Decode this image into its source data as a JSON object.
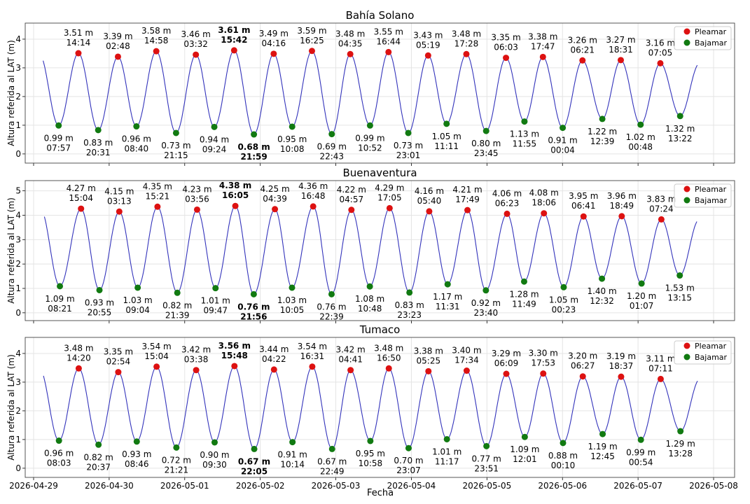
{
  "figure": {
    "xlabel": "Fecha",
    "x_ticks": [
      "2026-04-29",
      "2026-04-30",
      "2026-05-01",
      "2026-05-02",
      "2026-05-03",
      "2026-05-04",
      "2026-05-05",
      "2026-05-06",
      "2026-05-07",
      "2026-05-08"
    ]
  },
  "colors": {
    "line": "#3333bb",
    "high": "#dd1111",
    "low": "#117a11",
    "grid": "#e4e4e4"
  },
  "chart_data": [
    {
      "type": "line",
      "title": "Bahía Solano",
      "ylabel": "Altura referida al LAT (m)",
      "xlim": [
        "2026-04-28T21:20",
        "2026-05-08T06:40"
      ],
      "ylim": [
        -0.32,
        4.56
      ],
      "yticks": [
        0,
        1,
        2,
        3,
        4
      ],
      "grid": true,
      "legend": {
        "position": "top-right",
        "entries": [
          "Pleamar",
          "Bajamar"
        ]
      },
      "series": [
        {
          "name": "Pleamar",
          "points": [
            {
              "x": "2026-04-29T14:14",
              "y": 3.51,
              "label": "3.51 m",
              "time": "14:14"
            },
            {
              "x": "2026-04-30T02:48",
              "y": 3.39,
              "label": "3.39 m",
              "time": "02:48"
            },
            {
              "x": "2026-04-30T14:58",
              "y": 3.58,
              "label": "3.58 m",
              "time": "14:58"
            },
            {
              "x": "2026-05-01T03:32",
              "y": 3.46,
              "label": "3.46 m",
              "time": "03:32"
            },
            {
              "x": "2026-05-01T15:42",
              "y": 3.61,
              "label": "3.61 m",
              "time": "15:42",
              "bold": true
            },
            {
              "x": "2026-05-02T04:16",
              "y": 3.49,
              "label": "3.49 m",
              "time": "04:16"
            },
            {
              "x": "2026-05-02T16:25",
              "y": 3.59,
              "label": "3.59 m",
              "time": "16:25"
            },
            {
              "x": "2026-05-03T04:35",
              "y": 3.48,
              "label": "3.48 m",
              "time": "04:35"
            },
            {
              "x": "2026-05-03T16:44",
              "y": 3.55,
              "label": "3.55 m",
              "time": "16:44"
            },
            {
              "x": "2026-05-04T05:19",
              "y": 3.43,
              "label": "3.43 m",
              "time": "05:19"
            },
            {
              "x": "2026-05-04T17:28",
              "y": 3.48,
              "label": "3.48 m",
              "time": "17:28"
            },
            {
              "x": "2026-05-05T06:03",
              "y": 3.35,
              "label": "3.35 m",
              "time": "06:03"
            },
            {
              "x": "2026-05-05T17:47",
              "y": 3.38,
              "label": "3.38 m",
              "time": "17:47"
            },
            {
              "x": "2026-05-06T06:21",
              "y": 3.26,
              "label": "3.26 m",
              "time": "06:21"
            },
            {
              "x": "2026-05-06T18:31",
              "y": 3.27,
              "label": "3.27 m",
              "time": "18:31"
            },
            {
              "x": "2026-05-07T07:05",
              "y": 3.16,
              "label": "3.16 m",
              "time": "07:05"
            }
          ]
        },
        {
          "name": "Bajamar",
          "points": [
            {
              "x": "2026-04-29T07:57",
              "y": 0.99,
              "label": "0.99 m",
              "time": "07:57"
            },
            {
              "x": "2026-04-29T20:31",
              "y": 0.83,
              "label": "0.83 m",
              "time": "20:31"
            },
            {
              "x": "2026-04-30T08:40",
              "y": 0.96,
              "label": "0.96 m",
              "time": "08:40"
            },
            {
              "x": "2026-04-30T21:15",
              "y": 0.73,
              "label": "0.73 m",
              "time": "21:15"
            },
            {
              "x": "2026-05-01T09:24",
              "y": 0.94,
              "label": "0.94 m",
              "time": "09:24"
            },
            {
              "x": "2026-05-01T21:59",
              "y": 0.68,
              "label": "0.68 m",
              "time": "21:59",
              "bold": true
            },
            {
              "x": "2026-05-02T10:08",
              "y": 0.95,
              "label": "0.95 m",
              "time": "10:08"
            },
            {
              "x": "2026-05-02T22:43",
              "y": 0.69,
              "label": "0.69 m",
              "time": "22:43"
            },
            {
              "x": "2026-05-03T10:52",
              "y": 0.99,
              "label": "0.99 m",
              "time": "10:52"
            },
            {
              "x": "2026-05-03T23:01",
              "y": 0.73,
              "label": "0.73 m",
              "time": "23:01"
            },
            {
              "x": "2026-05-04T11:11",
              "y": 1.05,
              "label": "1.05 m",
              "time": "11:11"
            },
            {
              "x": "2026-05-04T23:45",
              "y": 0.8,
              "label": "0.80 m",
              "time": "23:45"
            },
            {
              "x": "2026-05-05T11:55",
              "y": 1.13,
              "label": "1.13 m",
              "time": "11:55"
            },
            {
              "x": "2026-05-06T00:04",
              "y": 0.91,
              "label": "0.91 m",
              "time": "00:04"
            },
            {
              "x": "2026-05-06T12:39",
              "y": 1.22,
              "label": "1.22 m",
              "time": "12:39"
            },
            {
              "x": "2026-05-07T00:48",
              "y": 1.02,
              "label": "1.02 m",
              "time": "00:48"
            },
            {
              "x": "2026-05-07T13:22",
              "y": 1.32,
              "label": "1.32 m",
              "time": "13:22"
            }
          ]
        }
      ]
    },
    {
      "type": "line",
      "title": "Buenaventura",
      "ylabel": "Altura referida al LAT (m)",
      "xlim": [
        "2026-04-28T21:20",
        "2026-05-08T06:40"
      ],
      "ylim": [
        -0.32,
        5.42
      ],
      "yticks": [
        0,
        1,
        2,
        3,
        4,
        5
      ],
      "grid": true,
      "legend": {
        "position": "top-right",
        "entries": [
          "Pleamar",
          "Bajamar"
        ]
      },
      "series": [
        {
          "name": "Pleamar",
          "points": [
            {
              "x": "2026-04-29T15:04",
              "y": 4.27,
              "label": "4.27 m",
              "time": "15:04"
            },
            {
              "x": "2026-04-30T03:13",
              "y": 4.15,
              "label": "4.15 m",
              "time": "03:13"
            },
            {
              "x": "2026-04-30T15:21",
              "y": 4.35,
              "label": "4.35 m",
              "time": "15:21"
            },
            {
              "x": "2026-05-01T03:56",
              "y": 4.23,
              "label": "4.23 m",
              "time": "03:56"
            },
            {
              "x": "2026-05-01T16:05",
              "y": 4.38,
              "label": "4.38 m",
              "time": "16:05",
              "bold": true
            },
            {
              "x": "2026-05-02T04:39",
              "y": 4.25,
              "label": "4.25 m",
              "time": "04:39"
            },
            {
              "x": "2026-05-02T16:48",
              "y": 4.36,
              "label": "4.36 m",
              "time": "16:48"
            },
            {
              "x": "2026-05-03T04:57",
              "y": 4.22,
              "label": "4.22 m",
              "time": "04:57"
            },
            {
              "x": "2026-05-03T17:05",
              "y": 4.29,
              "label": "4.29 m",
              "time": "17:05"
            },
            {
              "x": "2026-05-04T05:40",
              "y": 4.16,
              "label": "4.16 m",
              "time": "05:40"
            },
            {
              "x": "2026-05-04T17:49",
              "y": 4.21,
              "label": "4.21 m",
              "time": "17:49"
            },
            {
              "x": "2026-05-05T06:23",
              "y": 4.06,
              "label": "4.06 m",
              "time": "06:23"
            },
            {
              "x": "2026-05-05T18:06",
              "y": 4.08,
              "label": "4.08 m",
              "time": "18:06"
            },
            {
              "x": "2026-05-06T06:41",
              "y": 3.95,
              "label": "3.95 m",
              "time": "06:41"
            },
            {
              "x": "2026-05-06T18:49",
              "y": 3.96,
              "label": "3.96 m",
              "time": "18:49"
            },
            {
              "x": "2026-05-07T07:24",
              "y": 3.83,
              "label": "3.83 m",
              "time": "07:24"
            }
          ]
        },
        {
          "name": "Bajamar",
          "points": [
            {
              "x": "2026-04-29T08:21",
              "y": 1.09,
              "label": "1.09 m",
              "time": "08:21"
            },
            {
              "x": "2026-04-29T20:55",
              "y": 0.93,
              "label": "0.93 m",
              "time": "20:55"
            },
            {
              "x": "2026-04-30T09:04",
              "y": 1.03,
              "label": "1.03 m",
              "time": "09:04"
            },
            {
              "x": "2026-04-30T21:39",
              "y": 0.82,
              "label": "0.82 m",
              "time": "21:39"
            },
            {
              "x": "2026-05-01T09:47",
              "y": 1.01,
              "label": "1.01 m",
              "time": "09:47"
            },
            {
              "x": "2026-05-01T21:56",
              "y": 0.76,
              "label": "0.76 m",
              "time": "21:56",
              "bold": true
            },
            {
              "x": "2026-05-02T10:05",
              "y": 1.03,
              "label": "1.03 m",
              "time": "10:05"
            },
            {
              "x": "2026-05-02T22:39",
              "y": 0.76,
              "label": "0.76 m",
              "time": "22:39"
            },
            {
              "x": "2026-05-03T10:48",
              "y": 1.08,
              "label": "1.08 m",
              "time": "10:48"
            },
            {
              "x": "2026-05-03T23:23",
              "y": 0.83,
              "label": "0.83 m",
              "time": "23:23"
            },
            {
              "x": "2026-05-04T11:31",
              "y": 1.17,
              "label": "1.17 m",
              "time": "11:31"
            },
            {
              "x": "2026-05-04T23:40",
              "y": 0.92,
              "label": "0.92 m",
              "time": "23:40"
            },
            {
              "x": "2026-05-05T11:49",
              "y": 1.28,
              "label": "1.28 m",
              "time": "11:49"
            },
            {
              "x": "2026-05-06T00:23",
              "y": 1.05,
              "label": "1.05 m",
              "time": "00:23"
            },
            {
              "x": "2026-05-06T12:32",
              "y": 1.4,
              "label": "1.40 m",
              "time": "12:32"
            },
            {
              "x": "2026-05-07T01:07",
              "y": 1.2,
              "label": "1.20 m",
              "time": "01:07"
            },
            {
              "x": "2026-05-07T13:15",
              "y": 1.53,
              "label": "1.53 m",
              "time": "13:15"
            }
          ]
        }
      ]
    },
    {
      "type": "line",
      "title": "Tumaco",
      "ylabel": "Altura referida al LAT (m)",
      "xlim": [
        "2026-04-28T21:20",
        "2026-05-08T06:40"
      ],
      "ylim": [
        -0.32,
        4.56
      ],
      "yticks": [
        0,
        1,
        2,
        3,
        4
      ],
      "grid": true,
      "legend": {
        "position": "top-right",
        "entries": [
          "Pleamar",
          "Bajamar"
        ]
      },
      "series": [
        {
          "name": "Pleamar",
          "points": [
            {
              "x": "2026-04-29T14:20",
              "y": 3.48,
              "label": "3.48 m",
              "time": "14:20"
            },
            {
              "x": "2026-04-30T02:54",
              "y": 3.35,
              "label": "3.35 m",
              "time": "02:54"
            },
            {
              "x": "2026-04-30T15:04",
              "y": 3.54,
              "label": "3.54 m",
              "time": "15:04"
            },
            {
              "x": "2026-05-01T03:38",
              "y": 3.42,
              "label": "3.42 m",
              "time": "03:38"
            },
            {
              "x": "2026-05-01T15:48",
              "y": 3.56,
              "label": "3.56 m",
              "time": "15:48",
              "bold": true
            },
            {
              "x": "2026-05-02T04:22",
              "y": 3.44,
              "label": "3.44 m",
              "time": "04:22"
            },
            {
              "x": "2026-05-02T16:31",
              "y": 3.54,
              "label": "3.54 m",
              "time": "16:31"
            },
            {
              "x": "2026-05-03T04:41",
              "y": 3.42,
              "label": "3.42 m",
              "time": "04:41"
            },
            {
              "x": "2026-05-03T16:50",
              "y": 3.48,
              "label": "3.48 m",
              "time": "16:50"
            },
            {
              "x": "2026-05-04T05:25",
              "y": 3.38,
              "label": "3.38 m",
              "time": "05:25"
            },
            {
              "x": "2026-05-04T17:34",
              "y": 3.4,
              "label": "3.40 m",
              "time": "17:34"
            },
            {
              "x": "2026-05-05T06:09",
              "y": 3.29,
              "label": "3.29 m",
              "time": "06:09"
            },
            {
              "x": "2026-05-05T17:53",
              "y": 3.3,
              "label": "3.30 m",
              "time": "17:53"
            },
            {
              "x": "2026-05-06T06:27",
              "y": 3.2,
              "label": "3.20 m",
              "time": "06:27"
            },
            {
              "x": "2026-05-06T18:37",
              "y": 3.19,
              "label": "3.19 m",
              "time": "18:37"
            },
            {
              "x": "2026-05-07T07:11",
              "y": 3.11,
              "label": "3.11 m",
              "time": "07:11"
            }
          ]
        },
        {
          "name": "Bajamar",
          "points": [
            {
              "x": "2026-04-29T08:03",
              "y": 0.96,
              "label": "0.96 m",
              "time": "08:03"
            },
            {
              "x": "2026-04-29T20:37",
              "y": 0.82,
              "label": "0.82 m",
              "time": "20:37"
            },
            {
              "x": "2026-04-30T08:46",
              "y": 0.93,
              "label": "0.93 m",
              "time": "08:46"
            },
            {
              "x": "2026-04-30T21:21",
              "y": 0.72,
              "label": "0.72 m",
              "time": "21:21"
            },
            {
              "x": "2026-05-01T09:30",
              "y": 0.9,
              "label": "0.90 m",
              "time": "09:30"
            },
            {
              "x": "2026-05-01T22:05",
              "y": 0.67,
              "label": "0.67 m",
              "time": "22:05",
              "bold": true
            },
            {
              "x": "2026-05-02T10:14",
              "y": 0.91,
              "label": "0.91 m",
              "time": "10:14"
            },
            {
              "x": "2026-05-02T22:49",
              "y": 0.67,
              "label": "0.67 m",
              "time": "22:49"
            },
            {
              "x": "2026-05-03T10:58",
              "y": 0.95,
              "label": "0.95 m",
              "time": "10:58"
            },
            {
              "x": "2026-05-03T23:07",
              "y": 0.7,
              "label": "0.70 m",
              "time": "23:07"
            },
            {
              "x": "2026-05-04T11:17",
              "y": 1.01,
              "label": "1.01 m",
              "time": "11:17"
            },
            {
              "x": "2026-05-04T23:51",
              "y": 0.77,
              "label": "0.77 m",
              "time": "23:51"
            },
            {
              "x": "2026-05-05T12:01",
              "y": 1.09,
              "label": "1.09 m",
              "time": "12:01"
            },
            {
              "x": "2026-05-06T00:10",
              "y": 0.88,
              "label": "0.88 m",
              "time": "00:10"
            },
            {
              "x": "2026-05-06T12:45",
              "y": 1.19,
              "label": "1.19 m",
              "time": "12:45"
            },
            {
              "x": "2026-05-07T00:54",
              "y": 0.99,
              "label": "0.99 m",
              "time": "00:54"
            },
            {
              "x": "2026-05-07T13:28",
              "y": 1.29,
              "label": "1.29 m",
              "time": "13:28"
            }
          ]
        }
      ]
    }
  ]
}
